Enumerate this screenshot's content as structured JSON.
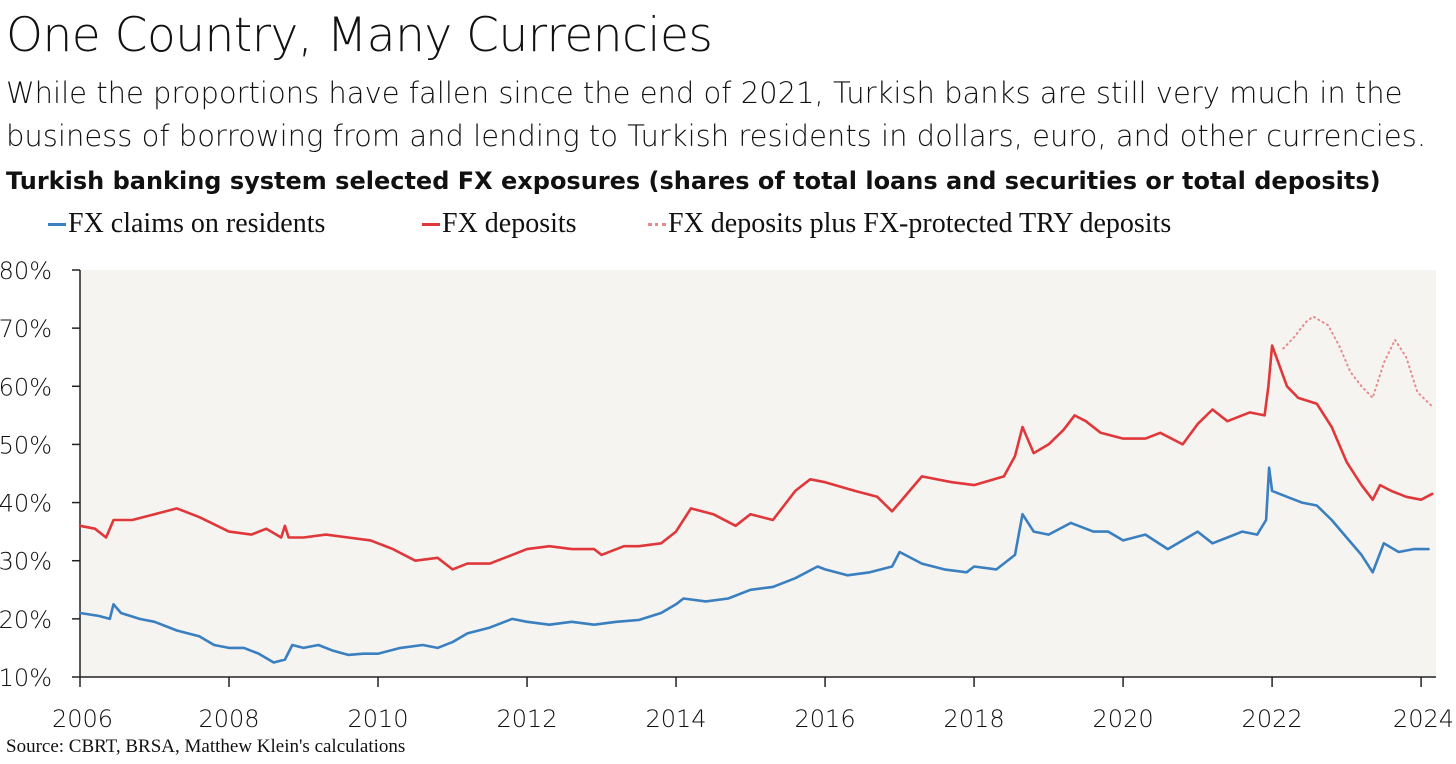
{
  "title": "One Country, Many Currencies",
  "subtitle": "While the proportions have fallen since the end of 2021, Turkish banks are still very much in the business of borrowing from and lending to Turkish residents in dollars, euro, and other currencies.",
  "chart_heading": "Turkish banking system selected FX exposures (shares of total loans and securities or total deposits)",
  "source": "Source: CBRT, BRSA, Matthew Klein's calculations",
  "colors": {
    "blue": "#3a7fc0",
    "red": "#e0383a",
    "pink": "#e88a8a",
    "plot_bg": "#f6f4f1"
  },
  "legend": [
    {
      "label": "FX claims on residents",
      "color": "#3a7fc0",
      "style": "solid"
    },
    {
      "label": "FX deposits",
      "color": "#e0383a",
      "style": "solid"
    },
    {
      "label": "FX deposits plus FX-protected TRY deposits",
      "color": "#e88a8a",
      "style": "dotted"
    }
  ],
  "chart_data": {
    "type": "line",
    "xlim": [
      2006,
      2024.2
    ],
    "ylim": [
      10,
      80
    ],
    "x_ticks": [
      2006,
      2008,
      2010,
      2012,
      2014,
      2016,
      2018,
      2020,
      2022,
      2024
    ],
    "x_tick_labels": [
      "2006",
      "2008",
      "2010",
      "2012",
      "2014",
      "2016",
      "2018",
      "2020",
      "2022",
      "2024"
    ],
    "y_ticks": [
      10,
      20,
      30,
      40,
      50,
      60,
      70,
      80
    ],
    "y_tick_labels": [
      "10%",
      "20%",
      "30%",
      "40%",
      "50%",
      "60%",
      "70%",
      "80%"
    ],
    "grid": false,
    "series": [
      {
        "name": "FX claims on residents",
        "color": "#3a7fc0",
        "style": "solid",
        "x": [
          2006.0,
          2006.25,
          2006.4,
          2006.45,
          2006.55,
          2006.8,
          2007.0,
          2007.3,
          2007.6,
          2007.8,
          2008.0,
          2008.2,
          2008.4,
          2008.6,
          2008.75,
          2008.85,
          2009.0,
          2009.2,
          2009.4,
          2009.6,
          2009.8,
          2010.0,
          2010.3,
          2010.6,
          2010.8,
          2011.0,
          2011.2,
          2011.5,
          2011.8,
          2012.0,
          2012.3,
          2012.6,
          2012.9,
          2013.2,
          2013.5,
          2013.8,
          2014.0,
          2014.1,
          2014.4,
          2014.7,
          2015.0,
          2015.3,
          2015.6,
          2015.9,
          2016.0,
          2016.3,
          2016.6,
          2016.9,
          2017.0,
          2017.3,
          2017.6,
          2017.9,
          2018.0,
          2018.3,
          2018.55,
          2018.65,
          2018.8,
          2019.0,
          2019.3,
          2019.6,
          2019.8,
          2020.0,
          2020.3,
          2020.6,
          2020.8,
          2021.0,
          2021.2,
          2021.4,
          2021.6,
          2021.8,
          2021.92,
          2021.96,
          2022.0,
          2022.2,
          2022.4,
          2022.6,
          2022.8,
          2023.0,
          2023.2,
          2023.35,
          2023.5,
          2023.7,
          2023.9,
          2024.1
        ],
        "y": [
          21,
          20.5,
          20,
          22.5,
          21,
          20,
          19.5,
          18,
          17,
          15.5,
          15,
          15,
          14,
          12.5,
          13,
          15.5,
          15,
          15.5,
          14.5,
          13.8,
          14,
          14,
          15,
          15.5,
          15,
          16,
          17.5,
          18.5,
          20,
          19.5,
          19,
          19.5,
          19,
          19.5,
          19.8,
          21,
          22.5,
          23.5,
          23,
          23.5,
          25,
          25.5,
          27,
          29,
          28.5,
          27.5,
          28,
          29,
          31.5,
          29.5,
          28.5,
          28,
          29,
          28.5,
          31,
          38,
          35,
          34.5,
          36.5,
          35,
          35,
          33.5,
          34.5,
          32,
          33.5,
          35,
          33,
          34,
          35,
          34.5,
          37,
          46,
          42,
          41,
          40,
          39.5,
          37,
          34,
          31,
          28,
          33,
          31.5,
          32,
          32
        ]
      },
      {
        "name": "FX deposits",
        "color": "#e0383a",
        "style": "solid",
        "x": [
          2006.0,
          2006.2,
          2006.35,
          2006.45,
          2006.7,
          2007.0,
          2007.3,
          2007.6,
          2008.0,
          2008.3,
          2008.5,
          2008.7,
          2008.75,
          2008.8,
          2009.0,
          2009.3,
          2009.6,
          2009.9,
          2010.2,
          2010.5,
          2010.8,
          2011.0,
          2011.2,
          2011.5,
          2011.8,
          2012.0,
          2012.3,
          2012.6,
          2012.9,
          2013.0,
          2013.3,
          2013.5,
          2013.8,
          2014.0,
          2014.2,
          2014.5,
          2014.8,
          2015.0,
          2015.3,
          2015.6,
          2015.8,
          2016.0,
          2016.4,
          2016.7,
          2016.9,
          2017.0,
          2017.3,
          2017.7,
          2018.0,
          2018.4,
          2018.55,
          2018.65,
          2018.8,
          2019.0,
          2019.2,
          2019.35,
          2019.5,
          2019.7,
          2020.0,
          2020.3,
          2020.5,
          2020.8,
          2021.0,
          2021.2,
          2021.4,
          2021.7,
          2021.9,
          2021.95,
          2022.0,
          2022.2,
          2022.35,
          2022.6,
          2022.8,
          2023.0,
          2023.2,
          2023.35,
          2023.45,
          2023.6,
          2023.8,
          2024.0,
          2024.15
        ],
        "y": [
          36,
          35.5,
          34,
          37,
          37,
          38,
          39,
          37.5,
          35,
          34.5,
          35.5,
          34,
          36,
          34,
          34,
          34.5,
          34,
          33.5,
          32,
          30,
          30.5,
          28.5,
          29.5,
          29.5,
          31,
          32,
          32.5,
          32,
          32,
          31,
          32.5,
          32.5,
          33,
          35,
          39,
          38,
          36,
          38,
          37,
          42,
          44,
          43.5,
          42,
          41,
          38.5,
          40,
          44.5,
          43.5,
          43,
          44.5,
          48,
          53,
          48.5,
          50,
          52.5,
          55,
          54,
          52,
          51,
          51,
          52,
          50,
          53.5,
          56,
          54,
          55.5,
          55,
          60,
          67,
          60,
          58,
          57,
          53,
          47,
          43,
          40.5,
          43,
          42,
          41,
          40.5,
          41.5
        ]
      },
      {
        "name": "FX deposits plus FX-protected TRY deposits",
        "color": "#e88a8a",
        "style": "dotted",
        "x": [
          2022.15,
          2022.3,
          2022.45,
          2022.55,
          2022.75,
          2022.9,
          2023.05,
          2023.2,
          2023.35,
          2023.5,
          2023.65,
          2023.8,
          2023.95,
          2024.15
        ],
        "y": [
          66.5,
          68.5,
          71,
          72,
          70.5,
          67,
          62.5,
          60,
          58,
          64,
          68,
          65,
          59,
          56.5
        ]
      }
    ]
  }
}
